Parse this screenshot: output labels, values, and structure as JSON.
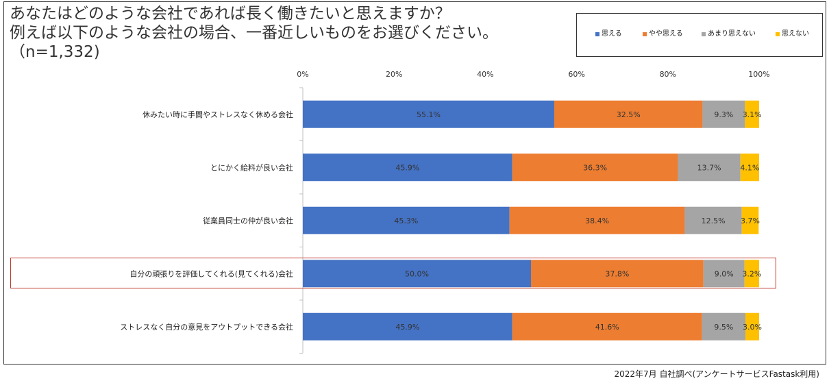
{
  "title_lines": [
    "あなたはどのような会社であれば長く働きたいと思えますか？",
    "例えば以下のような会社の場合、一番近しいものをお選びください。",
    "（n=1,332)"
  ],
  "source": "2022年7月 自社調べ(アンケートサービスFastask利用)",
  "colors": [
    "#4472c4",
    "#ed7d31",
    "#a5a5a5",
    "#ffc000"
  ],
  "chart_data": {
    "type": "bar",
    "orientation": "horizontal",
    "stacked": true,
    "title": "あなたはどのような会社であれば長く働きたいと思えますか？ 例えば以下のような会社の場合、一番近しいものをお選びください。（n=1,332)",
    "x_ticks": [
      "0%",
      "20%",
      "40%",
      "60%",
      "80%",
      "100%"
    ],
    "xlim": [
      0,
      100
    ],
    "legend_position": "top-right",
    "categories": [
      "休みたい時に手間やストレスなく休める会社",
      "とにかく給料が良い会社",
      "従業員同士の仲が良い会社",
      "自分の頑張りを評価してくれる(見てくれる)会社",
      "ストレスなく自分の意見をアウトプットできる会社"
    ],
    "highlighted_category": "自分の頑張りを評価してくれる(見てくれる)会社",
    "series": [
      {
        "name": "思える",
        "values": [
          55.1,
          45.9,
          45.3,
          50.0,
          45.9
        ],
        "labels": [
          "55.1%",
          "45.9%",
          "45.3%",
          "50.0%",
          "45.9%"
        ]
      },
      {
        "name": "やや思える",
        "values": [
          32.5,
          36.3,
          38.4,
          37.8,
          41.6
        ],
        "labels": [
          "32.5%",
          "36.3%",
          "38.4%",
          "37.8%",
          "41.6%"
        ]
      },
      {
        "name": "あまり思えない",
        "values": [
          9.3,
          13.7,
          12.5,
          9.0,
          9.5
        ],
        "labels": [
          "9.3%",
          "13.7%",
          "12.5%",
          "9.0%",
          "9.5%"
        ]
      },
      {
        "name": "思えない",
        "values": [
          3.1,
          4.1,
          3.7,
          3.2,
          3.0
        ],
        "labels": [
          "3.1%",
          "4.1%",
          "3.7%",
          "3.2%",
          "3.0%"
        ]
      }
    ]
  }
}
